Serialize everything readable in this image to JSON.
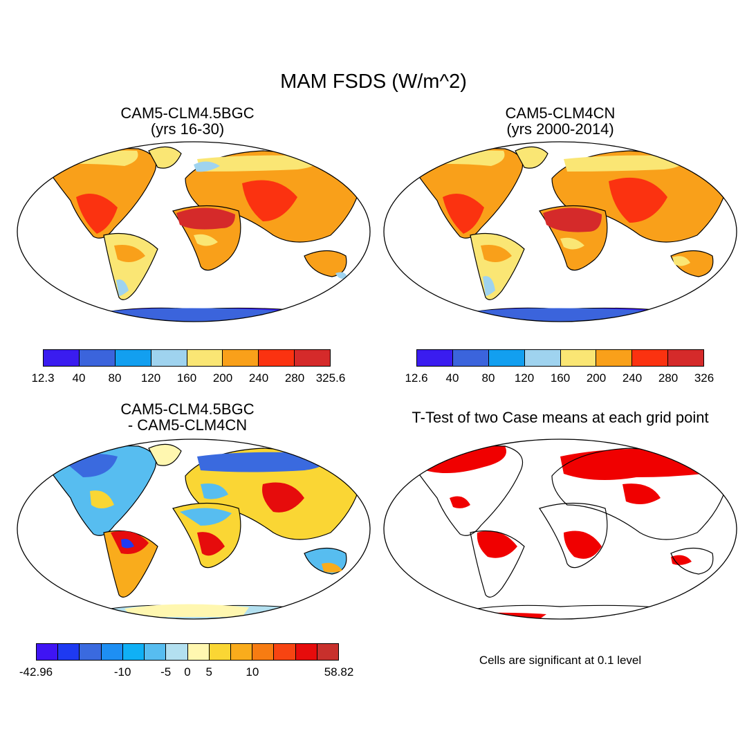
{
  "main_title": "MAM FSDS (W/m^2)",
  "panels": [
    {
      "title": "CAM5-CLM4.5BGC\n(yrs 16-30)"
    },
    {
      "title": "CAM5-CLM4CN\n(yrs 2000-2014)"
    },
    {
      "title": "CAM5-CLM4.5BGC\n- CAM5-CLM4CN"
    },
    {
      "title": "T-Test of two Case means at each grid point"
    }
  ],
  "colorbars": [
    {
      "labels": [
        "12.3",
        "40",
        "80",
        "120",
        "160",
        "200",
        "240",
        "280",
        "325.6"
      ],
      "colors": [
        "#3a1cf0",
        "#3b64dc",
        "#129ff0",
        "#9fd3ef",
        "#fae674",
        "#f9a01a",
        "#fb3210",
        "#d52a2a"
      ]
    },
    {
      "labels": [
        "12.6",
        "40",
        "80",
        "120",
        "160",
        "200",
        "240",
        "280",
        "326"
      ],
      "colors": [
        "#3a1cf0",
        "#3b64dc",
        "#129ff0",
        "#9fd3ef",
        "#fae674",
        "#f9a01a",
        "#fb3210",
        "#d52a2a"
      ]
    },
    {
      "labels": [
        "-42.96",
        "-10",
        "-5",
        "0",
        "5",
        "10",
        "58.82"
      ],
      "colors": [
        "#3f14f4",
        "#1e3af2",
        "#3a6adf",
        "#1e8ff3",
        "#10b0f5",
        "#57bdf0",
        "#b3e0f0",
        "#fff7b0",
        "#fad634",
        "#f9ac1c",
        "#f77c12",
        "#f74412",
        "#e60c0c",
        "#c8302c"
      ]
    }
  ],
  "note": "Cells are significant at 0.1 level",
  "map_colors": {
    "ocean": "#ffffff",
    "significance": "#f00000"
  }
}
